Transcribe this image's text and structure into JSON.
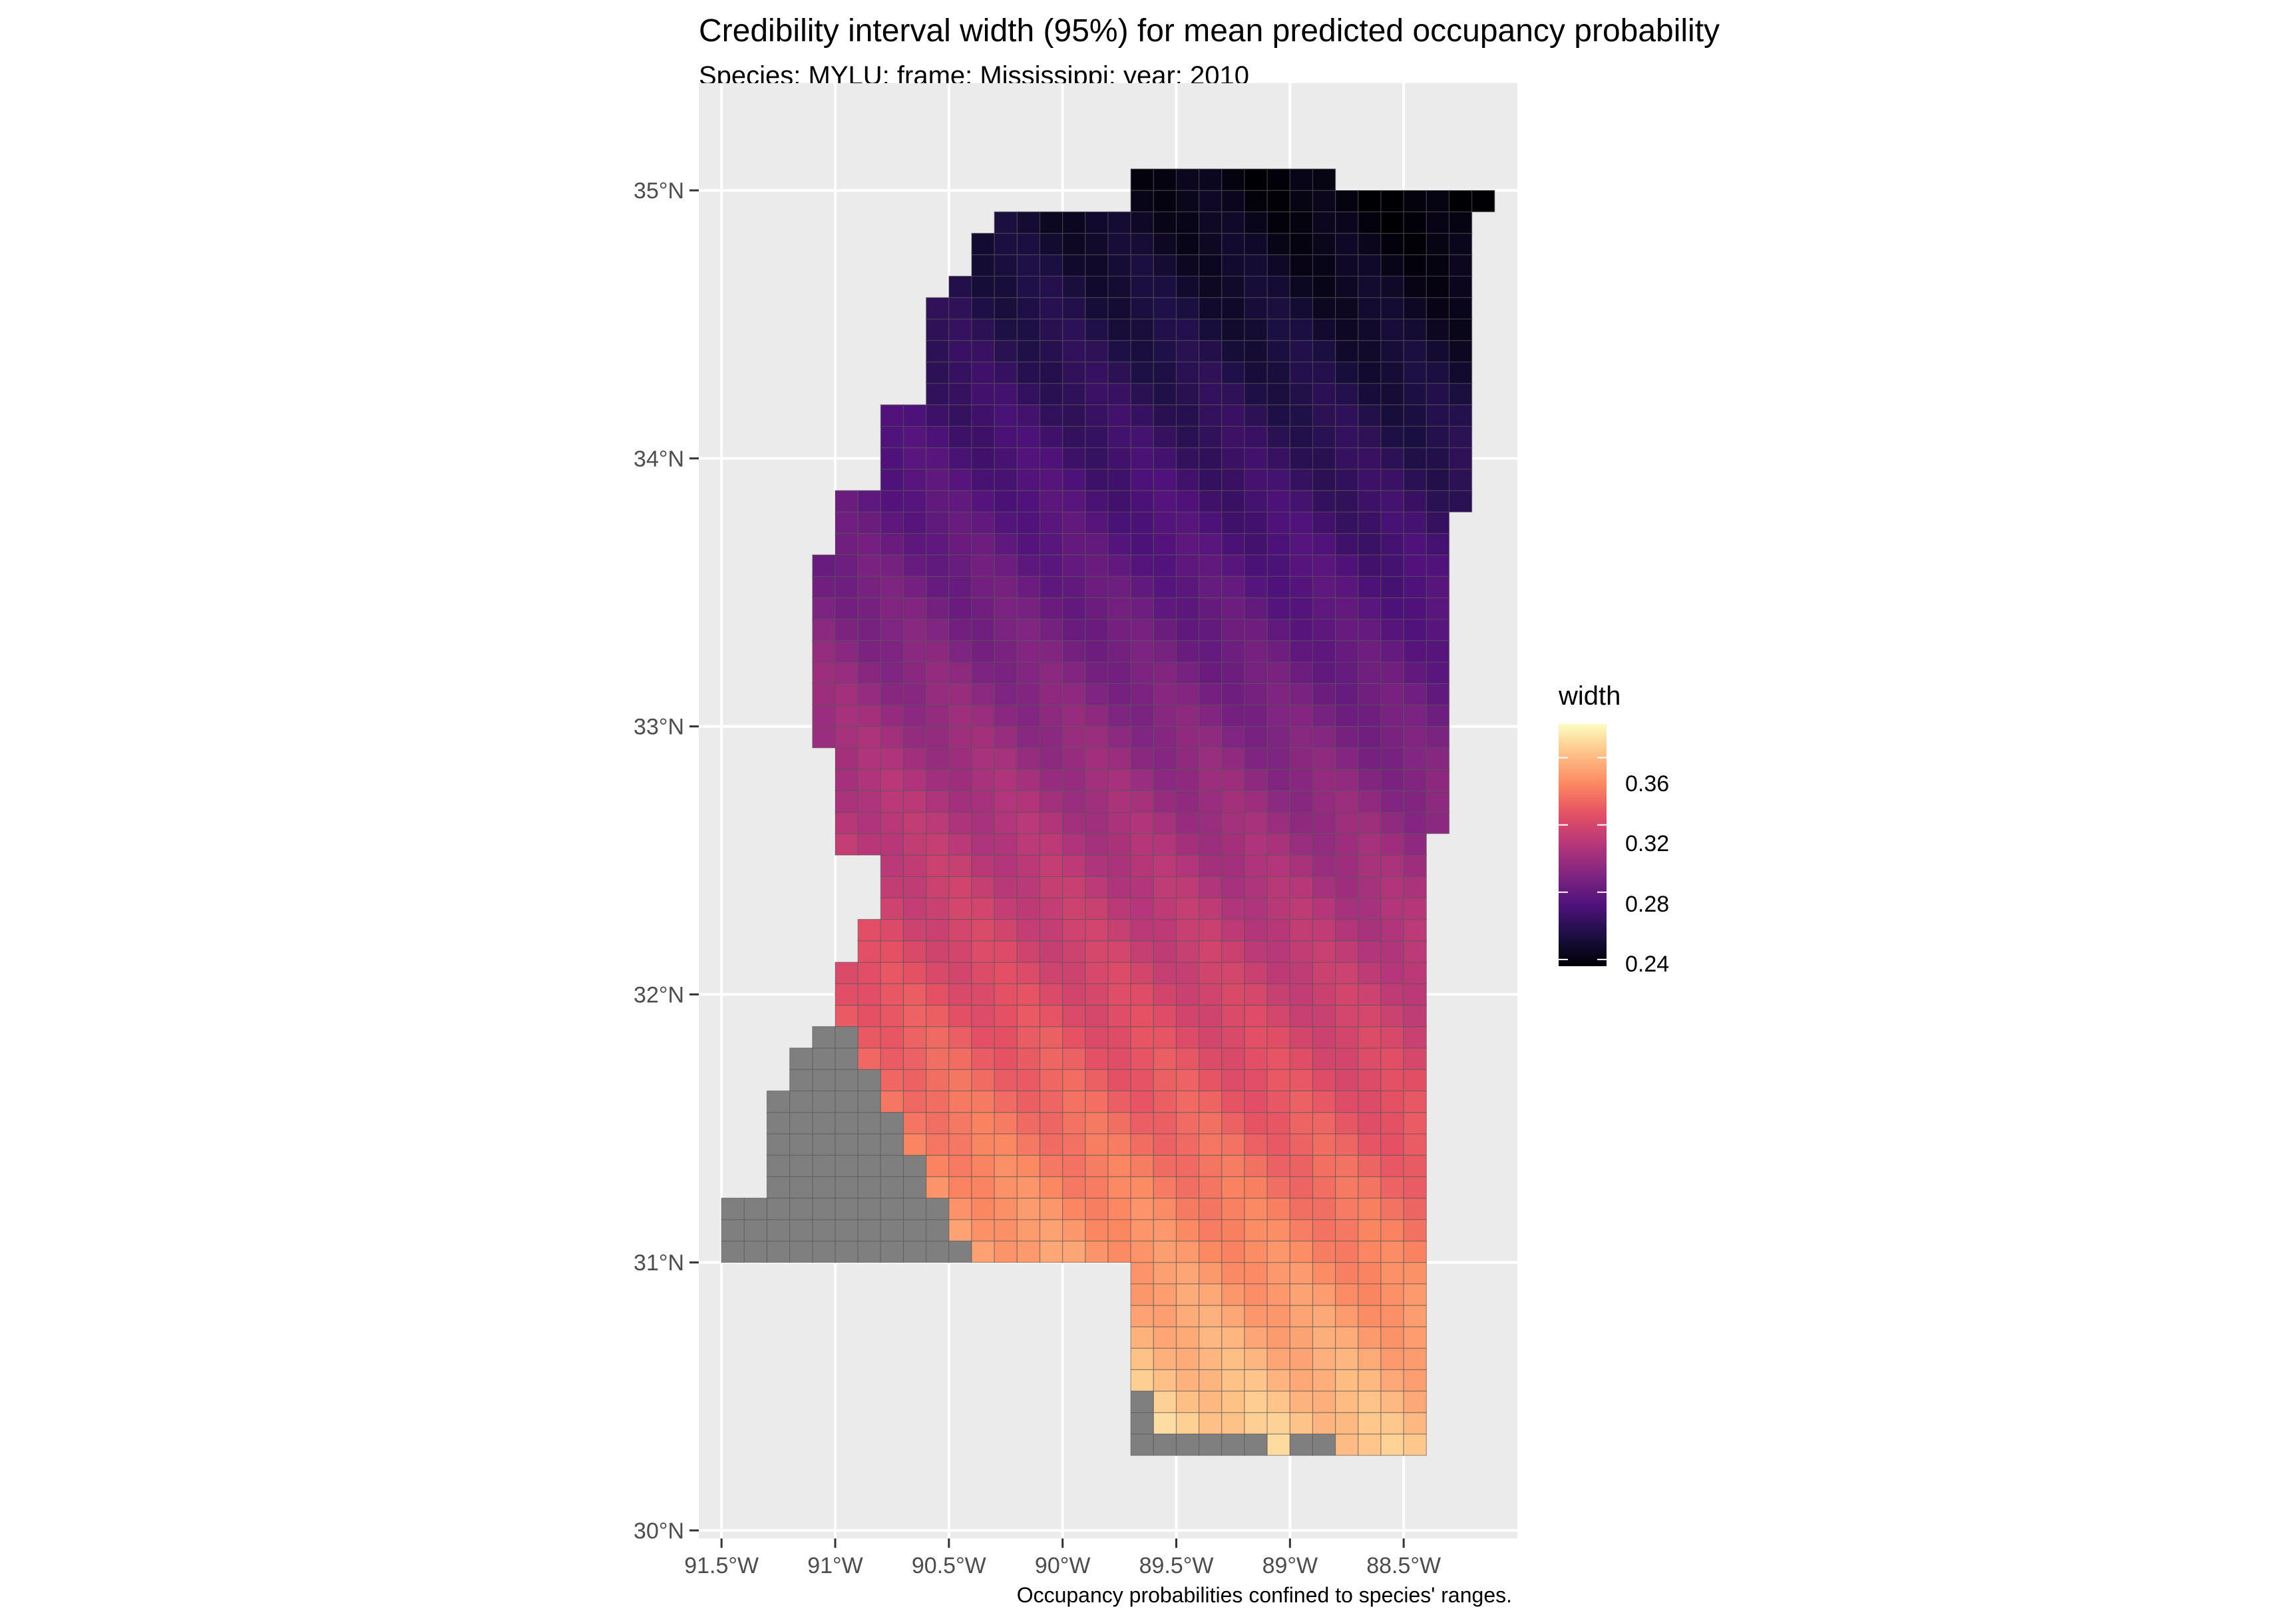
{
  "title": "Credibility interval width (95%) for mean predicted occupancy probability",
  "subtitle": "Species: MYLU; frame: Mississippi; year: 2010",
  "caption": "Occupancy probabilities confined to species' ranges.",
  "legend": {
    "title": "width",
    "labels": [
      "0.36",
      "0.32",
      "0.28",
      "0.24"
    ],
    "colors": [
      "#fcfdbf",
      "#fc9065",
      "#de4968",
      "#8c2981",
      "#3b0f70",
      "#000004"
    ],
    "range": [
      0.236,
      0.38
    ]
  },
  "axes": {
    "y_ticks": [
      "35°N",
      "34°N",
      "33°N",
      "32°N",
      "31°N",
      "30°N"
    ],
    "x_ticks": [
      "91.5°W",
      "91°W",
      "90.5°W",
      "90°W",
      "89.5°W",
      "89°W",
      "88.5°W"
    ],
    "background": "#ebebeb",
    "grid_color": "#ffffff",
    "na_color": "#7f7f7f"
  },
  "chart_data": {
    "type": "heatmap",
    "title": "Credibility interval width (95%) for mean predicted occupancy probability",
    "subtitle": "Species: MYLU; frame: Mississippi; year: 2010",
    "xlabel": "",
    "ylabel": "",
    "value_name": "width",
    "xlim": [
      -91.6,
      -88.0
    ],
    "ylim": [
      29.97,
      35.4
    ],
    "color_scale": "magma",
    "value_range": [
      0.236,
      0.38
    ],
    "trend": "width increases from about 0.24 in the north (35°N) to about 0.37 at the southern Gulf coast (30.3°N)",
    "gray_cells": "southwest region (91.5°W–90.4°W, 31°N–32°N) and Gulf coast strip have no value (outside species range)"
  }
}
